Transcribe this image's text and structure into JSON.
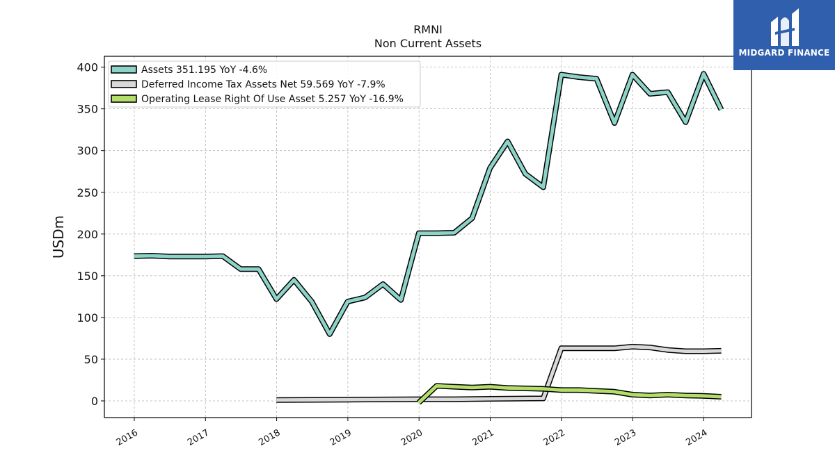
{
  "chart_data": {
    "type": "line",
    "title": "RMNI",
    "subtitle": "Non Current  Assets",
    "ylabel": "USDm",
    "xlabel": "",
    "ylim": [
      -20,
      413
    ],
    "xlim": [
      2015.58,
      2024.67
    ],
    "yticks": [
      0,
      50,
      100,
      150,
      200,
      250,
      300,
      350,
      400
    ],
    "xticks": [
      "2016",
      "2017",
      "2018",
      "2019",
      "2020",
      "2021",
      "2022",
      "2023",
      "2024"
    ],
    "grid": true,
    "legend_position": "top-left",
    "series": [
      {
        "name": "Assets  351.195 YoY -4.6%",
        "color": "#8dd3c7",
        "points": [
          [
            "2015-12-31",
            173.5
          ],
          [
            "2016-03-31",
            174
          ],
          [
            "2016-06-30",
            173
          ],
          [
            "2016-09-30",
            173
          ],
          [
            "2016-12-31",
            173
          ],
          [
            "2017-03-31",
            173.5
          ],
          [
            "2017-06-30",
            158
          ],
          [
            "2017-09-30",
            158
          ],
          [
            "2017-12-31",
            122
          ],
          [
            "2018-03-31",
            145
          ],
          [
            "2018-06-30",
            119
          ],
          [
            "2018-09-30",
            80
          ],
          [
            "2018-12-31",
            119
          ],
          [
            "2019-03-31",
            124
          ],
          [
            "2019-06-30",
            140
          ],
          [
            "2019-09-30",
            121
          ],
          [
            "2019-12-31",
            201
          ],
          [
            "2020-03-31",
            201
          ],
          [
            "2020-06-30",
            201.5
          ],
          [
            "2020-09-30",
            219
          ],
          [
            "2020-12-31",
            279
          ],
          [
            "2021-03-31",
            311
          ],
          [
            "2021-06-30",
            272
          ],
          [
            "2021-09-30",
            256
          ],
          [
            "2021-12-31",
            391
          ],
          [
            "2022-03-31",
            388
          ],
          [
            "2022-06-30",
            386
          ],
          [
            "2022-09-30",
            333
          ],
          [
            "2022-12-31",
            391
          ],
          [
            "2023-03-31",
            368
          ],
          [
            "2023-06-30",
            370
          ],
          [
            "2023-09-30",
            334
          ],
          [
            "2023-12-31",
            392
          ],
          [
            "2024-03-31",
            349
          ]
        ]
      },
      {
        "name": "Deferred Income Tax Assets Net  59.569 YoY -7.9%",
        "color": "#d9d9d9",
        "points": [
          [
            "2017-12-31",
            1
          ],
          [
            "2018-12-31",
            1.5
          ],
          [
            "2019-12-31",
            2
          ],
          [
            "2020-06-30",
            2
          ],
          [
            "2020-12-31",
            2.5
          ],
          [
            "2021-09-30",
            3
          ],
          [
            "2021-12-31",
            63
          ],
          [
            "2022-03-31",
            63
          ],
          [
            "2022-06-30",
            63
          ],
          [
            "2022-09-30",
            63
          ],
          [
            "2022-12-31",
            65
          ],
          [
            "2023-03-31",
            64
          ],
          [
            "2023-06-30",
            61
          ],
          [
            "2023-09-30",
            59.5
          ],
          [
            "2023-12-31",
            59.5
          ],
          [
            "2024-03-31",
            60
          ]
        ]
      },
      {
        "name": "Operating Lease Right Of Use Asset  5.257 YoY -16.9%",
        "color": "#b3de69",
        "points": [
          [
            "2019-12-31",
            -2
          ],
          [
            "2020-03-31",
            18
          ],
          [
            "2020-06-30",
            17
          ],
          [
            "2020-09-30",
            16
          ],
          [
            "2020-12-31",
            17
          ],
          [
            "2021-03-31",
            15.5
          ],
          [
            "2021-06-30",
            15
          ],
          [
            "2021-09-30",
            14.5
          ],
          [
            "2021-12-31",
            13
          ],
          [
            "2022-03-31",
            13
          ],
          [
            "2022-06-30",
            12
          ],
          [
            "2022-09-30",
            11
          ],
          [
            "2022-12-31",
            7.5
          ],
          [
            "2023-03-31",
            6.5
          ],
          [
            "2023-06-30",
            7.5
          ],
          [
            "2023-09-30",
            6.5
          ],
          [
            "2023-12-31",
            6
          ],
          [
            "2024-03-31",
            5
          ]
        ]
      }
    ]
  },
  "logo": {
    "text": "MIDGARD FINANCE"
  }
}
